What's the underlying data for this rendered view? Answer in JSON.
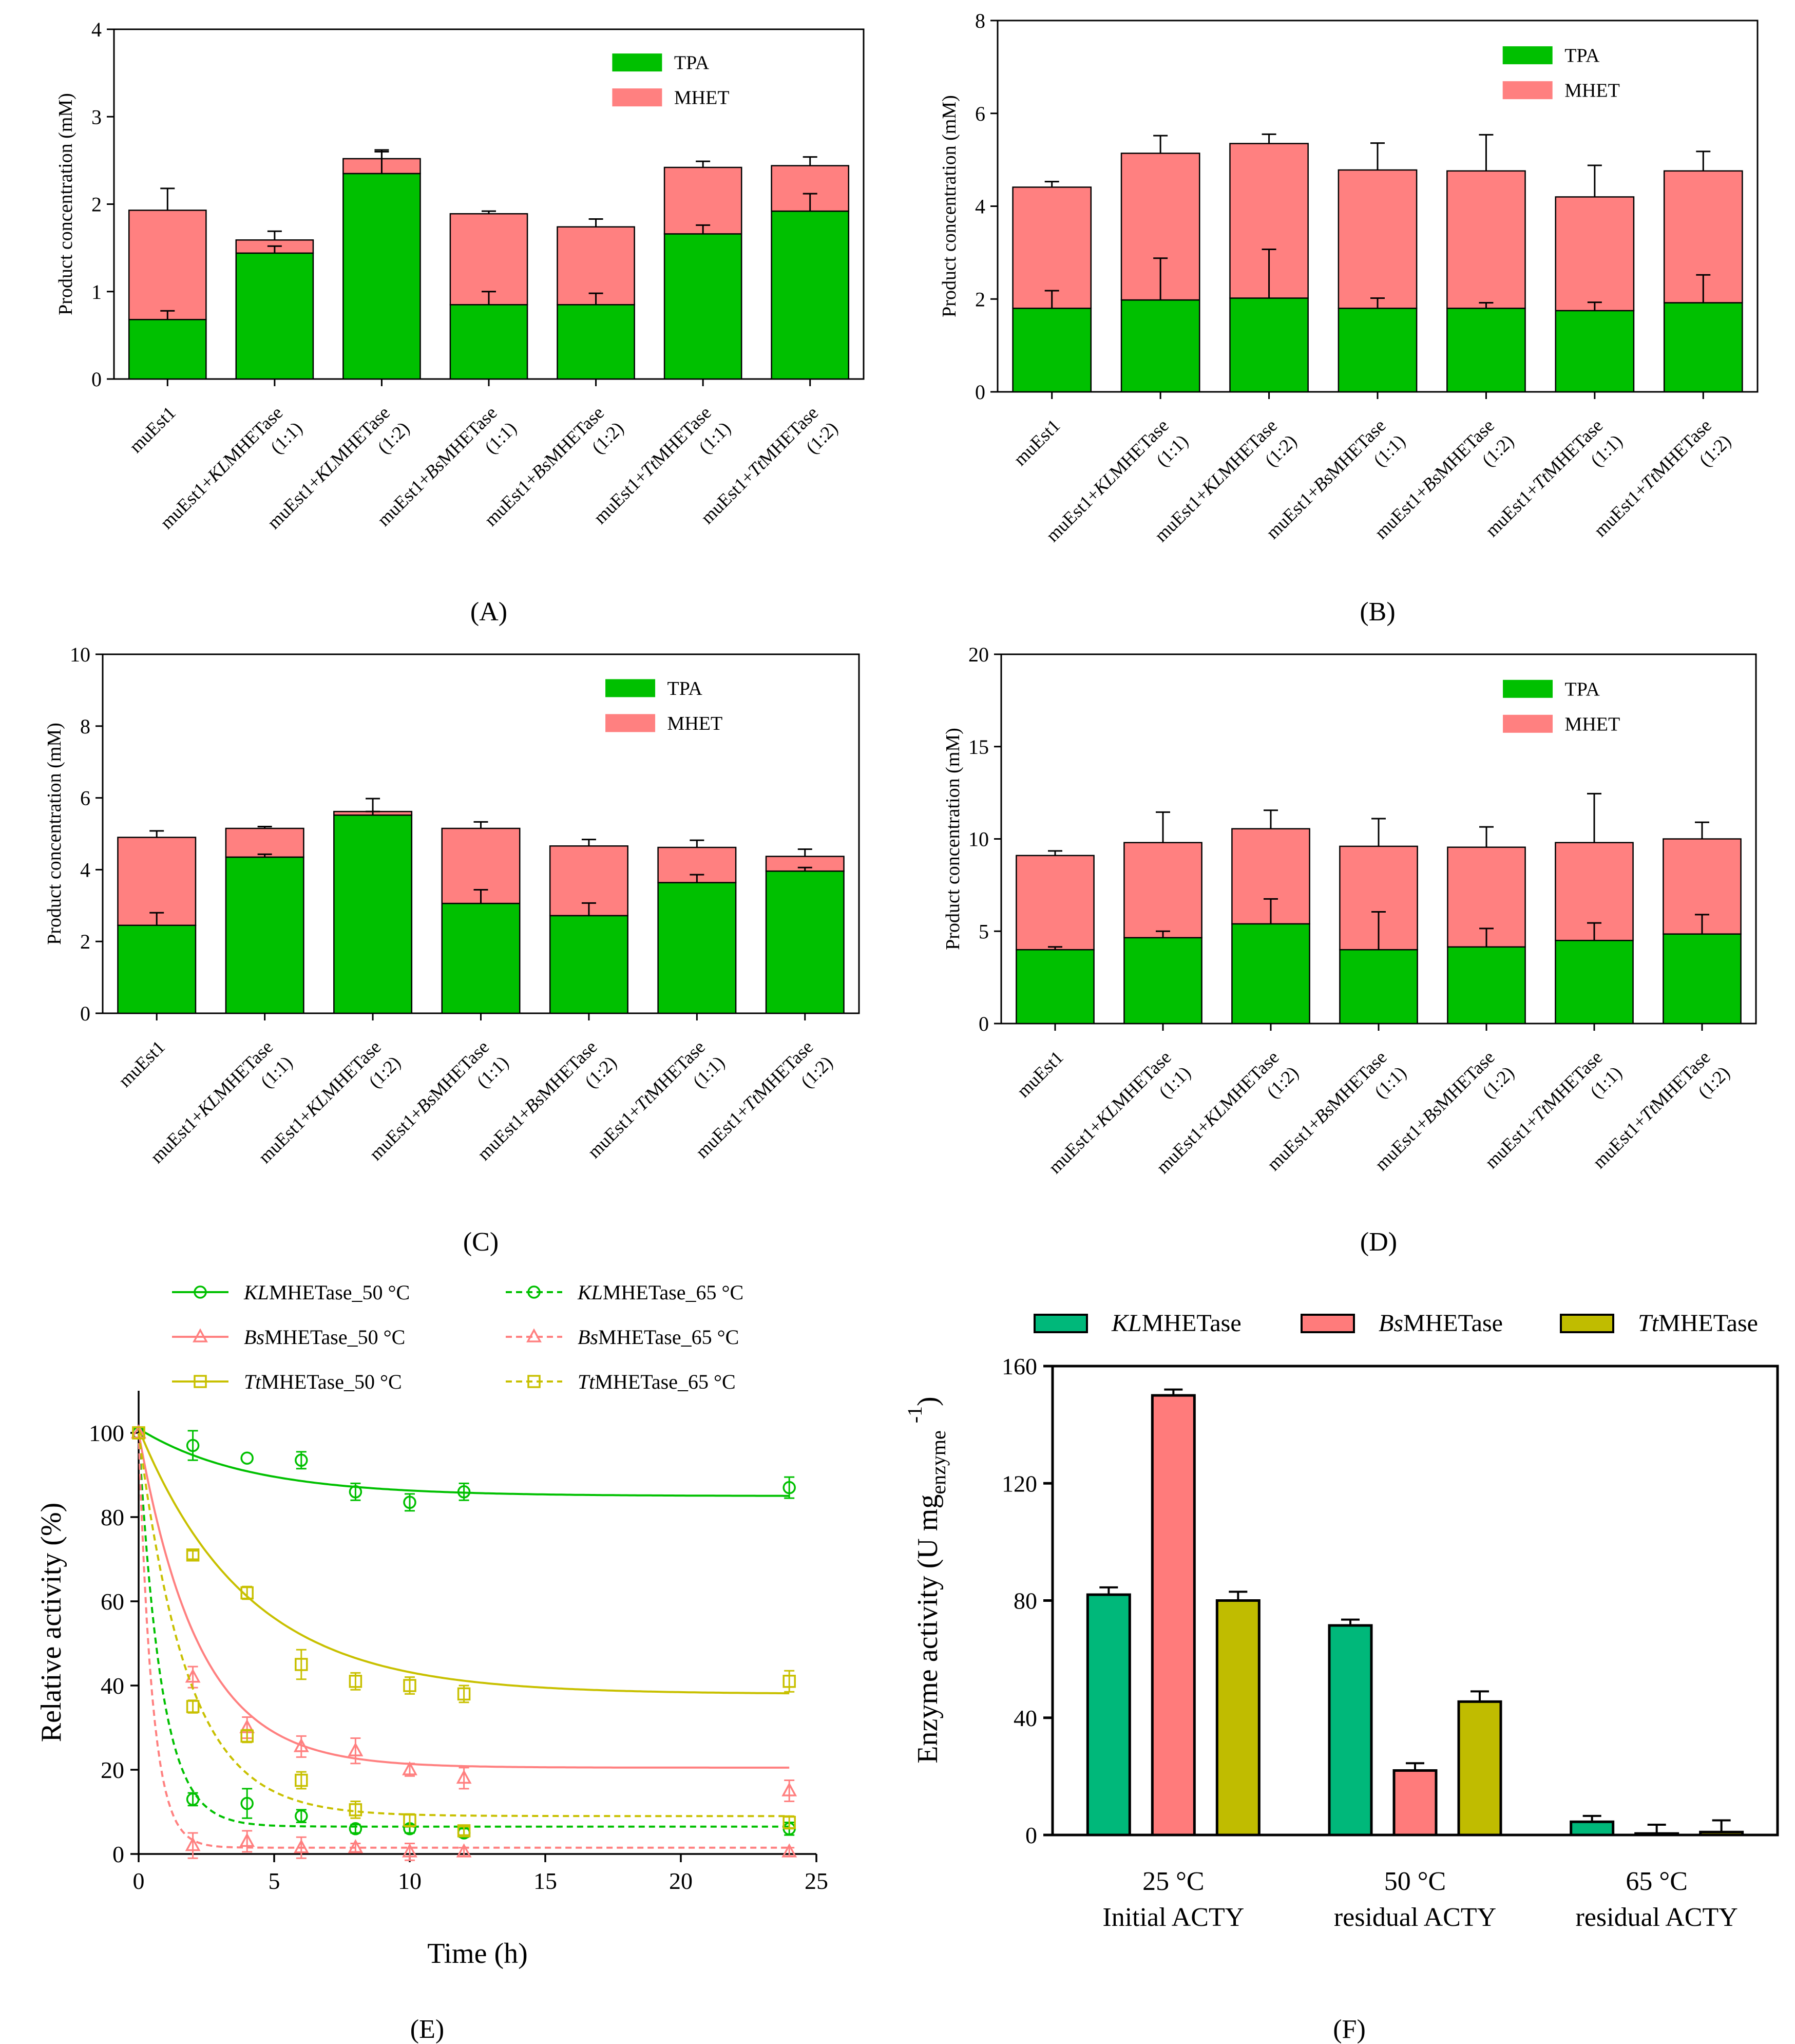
{
  "figure": {
    "panels": [
      "(A)",
      "(B)",
      "(C)",
      "(D)",
      "(E)",
      "(F)"
    ]
  },
  "colors": {
    "tpa": "#00c000",
    "mhet": "#ff8080",
    "kl": "#00c000",
    "bs": "#ff8080",
    "tt": "#c8c000",
    "f_kl": "#00b87a",
    "f_bs": "#ff7b7b",
    "f_tt": "#c0bc00",
    "axis": "#000000"
  },
  "chart_data": [
    {
      "type": "bar",
      "stacked": true,
      "title": "(A)",
      "ylabel": "Product concentration (mM)",
      "ylim": [
        0,
        4
      ],
      "yticks": [
        0,
        1,
        2,
        3,
        4
      ],
      "categories": [
        {
          "pre": "muEst1",
          "it": "",
          "post": "",
          "ratio": ""
        },
        {
          "pre": "muEst1+",
          "it": "KL",
          "post": "MHETase",
          "ratio": "(1:1)"
        },
        {
          "pre": "muEst1+",
          "it": "KL",
          "post": "MHETase",
          "ratio": "(1:2)"
        },
        {
          "pre": "muEst1+",
          "it": "Bs",
          "post": "MHETase",
          "ratio": "(1:1)"
        },
        {
          "pre": "muEst1+",
          "it": "Bs",
          "post": "MHETase",
          "ratio": "(1:2)"
        },
        {
          "pre": "muEst1+",
          "it": "Tt",
          "post": "MHETase",
          "ratio": "(1:1)"
        },
        {
          "pre": "muEst1+",
          "it": "Tt",
          "post": "MHETase",
          "ratio": "(1:2)"
        }
      ],
      "series": [
        {
          "name": "TPA",
          "values": [
            0.68,
            1.44,
            2.35,
            0.85,
            0.85,
            1.66,
            1.92
          ],
          "errors": [
            0.1,
            0.08,
            0.25,
            0.15,
            0.13,
            0.1,
            0.2
          ]
        },
        {
          "name": "MHET",
          "values": [
            1.25,
            0.15,
            0.17,
            1.04,
            0.89,
            0.76,
            0.52
          ],
          "errors": [
            0.25,
            0.1,
            0.1,
            0.03,
            0.09,
            0.07,
            0.1
          ]
        }
      ],
      "legend": [
        "TPA",
        "MHET"
      ]
    },
    {
      "type": "bar",
      "stacked": true,
      "title": "(B)",
      "ylabel": "Product concentration (mM)",
      "ylim": [
        0,
        8
      ],
      "yticks": [
        0,
        2,
        4,
        6,
        8
      ],
      "categories": [
        {
          "pre": "muEst1",
          "it": "",
          "post": "",
          "ratio": ""
        },
        {
          "pre": "muEst1+",
          "it": "KL",
          "post": "MHETase",
          "ratio": "(1:1)"
        },
        {
          "pre": "muEst1+",
          "it": "KL",
          "post": "MHETase",
          "ratio": "(1:2)"
        },
        {
          "pre": "muEst1+",
          "it": "Bs",
          "post": "MHETase",
          "ratio": "(1:1)"
        },
        {
          "pre": "muEst1+",
          "it": "Bs",
          "post": "MHETase",
          "ratio": "(1:2)"
        },
        {
          "pre": "muEst1+",
          "it": "Tt",
          "post": "MHETase",
          "ratio": "(1:1)"
        },
        {
          "pre": "muEst1+",
          "it": "Tt",
          "post": "MHETase",
          "ratio": "(1:2)"
        }
      ],
      "series": [
        {
          "name": "TPA",
          "values": [
            1.8,
            1.98,
            2.02,
            1.8,
            1.8,
            1.75,
            1.92
          ],
          "errors": [
            0.38,
            0.9,
            1.05,
            0.22,
            0.12,
            0.18,
            0.6
          ]
        },
        {
          "name": "MHET",
          "values": [
            2.61,
            3.16,
            3.33,
            2.98,
            2.96,
            2.45,
            2.84
          ],
          "errors": [
            0.12,
            0.38,
            0.2,
            0.58,
            0.78,
            0.68,
            0.42
          ]
        }
      ],
      "legend": [
        "TPA",
        "MHET"
      ]
    },
    {
      "type": "bar",
      "stacked": true,
      "title": "(C)",
      "ylabel": "Product concentration (mM)",
      "ylim": [
        0,
        10
      ],
      "yticks": [
        0,
        2,
        4,
        6,
        8,
        10
      ],
      "categories": [
        {
          "pre": "muEst1",
          "it": "",
          "post": "",
          "ratio": ""
        },
        {
          "pre": "muEst1+",
          "it": "KL",
          "post": "MHETase",
          "ratio": "(1:1)"
        },
        {
          "pre": "muEst1+",
          "it": "KL",
          "post": "MHETase",
          "ratio": "(1:2)"
        },
        {
          "pre": "muEst1+",
          "it": "Bs",
          "post": "MHETase",
          "ratio": "(1:1)"
        },
        {
          "pre": "muEst1+",
          "it": "Bs",
          "post": "MHETase",
          "ratio": "(1:2)"
        },
        {
          "pre": "muEst1+",
          "it": "Tt",
          "post": "MHETase",
          "ratio": "(1:1)"
        },
        {
          "pre": "muEst1+",
          "it": "Tt",
          "post": "MHETase",
          "ratio": "(1:2)"
        }
      ],
      "series": [
        {
          "name": "TPA",
          "values": [
            2.45,
            4.35,
            5.52,
            3.06,
            2.72,
            3.64,
            3.96
          ],
          "errors": [
            0.35,
            0.08,
            0.1,
            0.38,
            0.35,
            0.22,
            0.1
          ]
        },
        {
          "name": "MHET",
          "values": [
            2.45,
            0.8,
            0.1,
            2.09,
            1.94,
            0.98,
            0.41
          ],
          "errors": [
            0.18,
            0.05,
            0.36,
            0.18,
            0.18,
            0.2,
            0.2
          ]
        }
      ],
      "legend": [
        "TPA",
        "MHET"
      ]
    },
    {
      "type": "bar",
      "stacked": true,
      "title": "(D)",
      "ylabel": "Product concentration (mM)",
      "ylim": [
        0,
        20
      ],
      "yticks": [
        0,
        5,
        10,
        15,
        20
      ],
      "categories": [
        {
          "pre": "muEst1",
          "it": "",
          "post": "",
          "ratio": ""
        },
        {
          "pre": "muEst1+",
          "it": "KL",
          "post": "MHETase",
          "ratio": "(1:1)"
        },
        {
          "pre": "muEst1+",
          "it": "KL",
          "post": "MHETase",
          "ratio": "(1:2)"
        },
        {
          "pre": "muEst1+",
          "it": "Bs",
          "post": "MHETase",
          "ratio": "(1:1)"
        },
        {
          "pre": "muEst1+",
          "it": "Bs",
          "post": "MHETase",
          "ratio": "(1:2)"
        },
        {
          "pre": "muEst1+",
          "it": "Tt",
          "post": "MHETase",
          "ratio": "(1:1)"
        },
        {
          "pre": "muEst1+",
          "it": "Tt",
          "post": "MHETase",
          "ratio": "(1:2)"
        }
      ],
      "series": [
        {
          "name": "TPA",
          "values": [
            4.0,
            4.65,
            5.4,
            4.0,
            4.15,
            4.5,
            4.85
          ],
          "errors": [
            0.15,
            0.35,
            1.35,
            2.05,
            1.0,
            0.95,
            1.05
          ]
        },
        {
          "name": "MHET",
          "values": [
            5.1,
            5.15,
            5.15,
            5.6,
            5.4,
            5.3,
            5.15
          ],
          "errors": [
            0.25,
            1.65,
            1.0,
            1.5,
            1.1,
            2.65,
            0.9
          ]
        }
      ],
      "legend": [
        "TPA",
        "MHET"
      ]
    },
    {
      "type": "line",
      "title": "(E)",
      "xlabel": "Time (h)",
      "ylabel": "Relative activity (%)",
      "xlim": [
        0,
        25
      ],
      "ylim": [
        0,
        110
      ],
      "xticks": [
        0,
        5,
        10,
        15,
        20,
        25
      ],
      "yticks": [
        0,
        20,
        40,
        60,
        80,
        100
      ],
      "x": [
        0,
        2,
        4,
        6,
        8,
        10,
        12,
        24
      ],
      "series": [
        {
          "name": "KLMHETase_50 °C",
          "it": "KL",
          "rest": "MHETase_50 °C",
          "color": "#00c000",
          "marker": "circle",
          "dash": false,
          "values": [
            100,
            97,
            94,
            93.5,
            86,
            83.5,
            86,
            87
          ],
          "errors": [
            0,
            3.5,
            0,
            2,
            2,
            2,
            2,
            2.5
          ],
          "fit": {
            "plateau": 85,
            "y0": 101,
            "k": 0.25
          }
        },
        {
          "name": "BsMHETase_50 °C",
          "it": "Bs",
          "rest": "MHETase_50 °C",
          "color": "#ff8080",
          "marker": "triangle",
          "dash": false,
          "values": [
            100,
            42,
            30,
            25.5,
            24.5,
            20,
            18,
            15
          ],
          "errors": [
            0,
            2.5,
            2.5,
            2.5,
            3,
            1.5,
            2.5,
            2.5
          ],
          "fit": {
            "plateau": 20.5,
            "y0": 100,
            "k": 0.45
          }
        },
        {
          "name": "TtMHETase_50 °C",
          "it": "Tt",
          "rest": "MHETase_50 °C",
          "color": "#c8c000",
          "marker": "square",
          "dash": false,
          "values": [
            100,
            71,
            62,
            45,
            41,
            40,
            38,
            41
          ],
          "errors": [
            0,
            1,
            1.5,
            3.5,
            2,
            2,
            2,
            2.5
          ],
          "fit": {
            "plateau": 38,
            "y0": 101,
            "k": 0.25
          }
        },
        {
          "name": "KLMHETase_65 °C",
          "it": "KL",
          "rest": "MHETase_65 °C",
          "color": "#00c000",
          "marker": "circle",
          "dash": true,
          "values": [
            100,
            13,
            12,
            9,
            6,
            6,
            5,
            6
          ],
          "errors": [
            0,
            1.5,
            3.5,
            1.5,
            1,
            1,
            1,
            1.5
          ],
          "fit": {
            "plateau": 6.5,
            "y0": 100,
            "k": 1.2
          }
        },
        {
          "name": "BsMHETase_65 °C",
          "it": "Bs",
          "rest": "MHETase_65 °C",
          "color": "#ff8080",
          "marker": "triangle",
          "dash": true,
          "values": [
            100,
            2,
            3,
            1.5,
            1.5,
            0.5,
            0.5,
            0.5
          ],
          "errors": [
            0,
            3,
            2.5,
            2.5,
            1,
            2,
            1,
            1
          ],
          "fit": {
            "plateau": 1.5,
            "y0": 100,
            "k": 2.0
          }
        },
        {
          "name": "TtMHETase_65 °C",
          "it": "Tt",
          "rest": "MHETase_65 °C",
          "color": "#c8c000",
          "marker": "square",
          "dash": true,
          "values": [
            100,
            35,
            28,
            17.5,
            10.5,
            8,
            5.5,
            7.5
          ],
          "errors": [
            0,
            1.5,
            1.5,
            2,
            2,
            1.5,
            1,
            1.5
          ],
          "fit": {
            "plateau": 9,
            "y0": 100,
            "k": 0.55
          }
        }
      ]
    },
    {
      "type": "bar",
      "title": "(F)",
      "ylabel_main": "Enzyme activity (U mg",
      "ylabel_sub": "enzyme",
      "ylabel_sup": "-1",
      "ylabel_close": ")",
      "ylim": [
        0,
        160
      ],
      "yticks": [
        0,
        40,
        80,
        120,
        160
      ],
      "groups": [
        {
          "line1": "25 °C",
          "line2": "Initial ACTY"
        },
        {
          "line1": "50 °C",
          "line2": "residual ACTY"
        },
        {
          "line1": "65 °C",
          "line2": "residual ACTY"
        }
      ],
      "series": [
        {
          "name": "KLMHETase",
          "it": "KL",
          "rest": "MHETase",
          "values": [
            82,
            71.5,
            4.5
          ],
          "errors": [
            2.5,
            2,
            2
          ]
        },
        {
          "name": "BsMHETase",
          "it": "Bs",
          "rest": "MHETase",
          "values": [
            150,
            22,
            0.5
          ],
          "errors": [
            2,
            2.5,
            3
          ]
        },
        {
          "name": "TtMHETase",
          "it": "Tt",
          "rest": "MHETase",
          "values": [
            80,
            45.5,
            1
          ],
          "errors": [
            3,
            3.5,
            4
          ]
        }
      ]
    }
  ]
}
